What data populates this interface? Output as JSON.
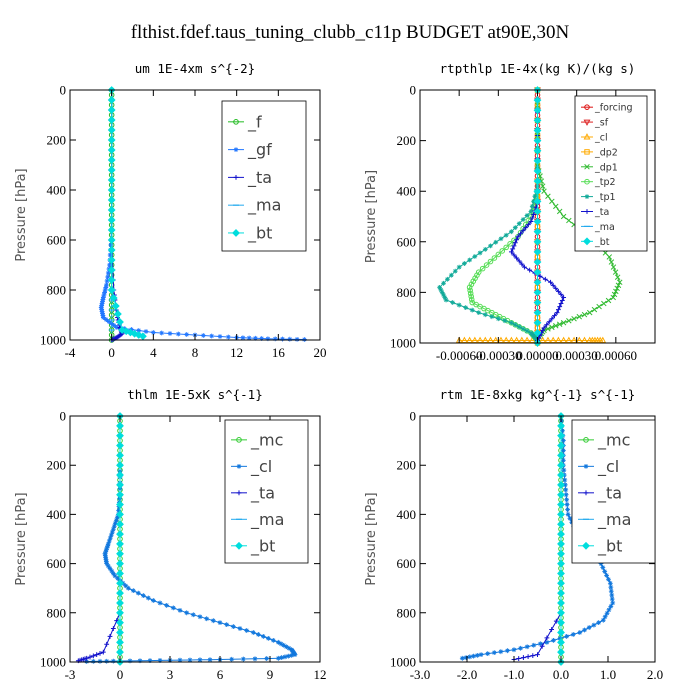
{
  "title": "flthist.fdef.taus_tuning_clubb_c11p  BUDGET at90E,30N",
  "colors": {
    "f": "#22bb22",
    "gf": "#2277ff",
    "ta": "#1111cc",
    "ma": "#22aaee",
    "bt": "#00dddd",
    "mc": "#33cc33",
    "cl": "#1177dd",
    "forcing": "#dd1111",
    "sf": "#dd2222",
    "dp2": "#ffaa00",
    "dp1": "#33bb33",
    "tp2": "#55dd55",
    "tp1": "#11aa99"
  },
  "chart_data": [
    {
      "type": "line",
      "title": "um  1E-4xm s^{-2}",
      "ylabel": "Pressure [hPa]",
      "xlim": [
        -4,
        20
      ],
      "ylim": [
        1000,
        0
      ],
      "xticks": [
        -4,
        0,
        4,
        8,
        12,
        16,
        20
      ],
      "xtick_labels": [
        "-4",
        "0",
        "4",
        "8",
        "12",
        "16",
        "20"
      ],
      "yticks": [
        0,
        200,
        400,
        600,
        800,
        1000
      ],
      "legend_position": "top-right",
      "series": [
        {
          "name": "_f",
          "color_key": "f",
          "marker": "circle",
          "x": [
            0,
            0,
            0,
            0,
            0,
            0,
            0,
            0,
            0,
            0,
            0
          ],
          "y": [
            0,
            100,
            200,
            300,
            400,
            500,
            600,
            700,
            800,
            900,
            1000
          ]
        },
        {
          "name": "_gf",
          "color_key": "gf",
          "marker": "star",
          "x": [
            0,
            0,
            0,
            -0.05,
            -0.2,
            -0.5,
            -0.8,
            -1,
            -0.8,
            0.5,
            4,
            8,
            12,
            15,
            18.5
          ],
          "y": [
            0,
            200,
            400,
            600,
            700,
            780,
            830,
            870,
            910,
            950,
            970,
            980,
            990,
            995,
            998
          ]
        },
        {
          "name": "_ta",
          "color_key": "ta",
          "marker": "plus",
          "x": [
            0,
            0,
            0,
            0,
            0.2,
            0.5,
            0.8,
            1,
            0.5,
            0
          ],
          "y": [
            0,
            200,
            400,
            600,
            800,
            900,
            950,
            975,
            990,
            1000
          ]
        },
        {
          "name": "_ma",
          "color_key": "ma",
          "marker": "dash",
          "x": [
            0,
            0,
            0,
            0,
            0,
            0
          ],
          "y": [
            0,
            200,
            400,
            600,
            800,
            1000
          ]
        },
        {
          "name": "_bt",
          "color_key": "bt",
          "marker": "diamond",
          "x": [
            0,
            0,
            0,
            0,
            0,
            1,
            3
          ],
          "y": [
            0,
            200,
            400,
            600,
            800,
            960,
            985
          ]
        }
      ]
    },
    {
      "type": "line",
      "title": "rtpthlp  1E-4x(kg K)/(kg s)",
      "ylabel": "Pressure [hPa]",
      "xlim": [
        -0.0009,
        0.0009
      ],
      "ylim": [
        1000,
        0
      ],
      "xticks": [
        -0.0006,
        -0.0003,
        0,
        0.0003,
        0.0006
      ],
      "xtick_labels": [
        "-0.00060",
        "-0.00030",
        "0.00000",
        "0.00030",
        "0.00060"
      ],
      "yticks": [
        0,
        200,
        400,
        600,
        800,
        1000
      ],
      "legend_position": "top-right",
      "series": [
        {
          "name": "_forcing",
          "color_key": "forcing",
          "marker": "circle",
          "x": [
            0,
            0,
            0,
            0,
            0,
            0,
            0,
            0,
            0,
            0,
            0
          ],
          "y": [
            0,
            100,
            200,
            300,
            400,
            500,
            600,
            700,
            800,
            900,
            1000
          ]
        },
        {
          "name": "_sf",
          "color_key": "sf",
          "marker": "triangle-down",
          "x": [
            0,
            0,
            0,
            0,
            0,
            0
          ],
          "y": [
            0,
            200,
            400,
            600,
            800,
            1000
          ]
        },
        {
          "name": "_cl",
          "color_key": "dp2",
          "marker": "triangle-up",
          "x": [
            -0.0006,
            -0.0004,
            -0.0002,
            0,
            0.0002,
            0.0004,
            0.0005
          ],
          "y": [
            990,
            990,
            990,
            990,
            990,
            990,
            990
          ]
        },
        {
          "name": "_dp2",
          "color_key": "dp2",
          "marker": "square",
          "x": [
            0,
            0,
            0,
            0,
            0
          ],
          "y": [
            0,
            300,
            600,
            900,
            1000
          ]
        },
        {
          "name": "_dp1",
          "color_key": "dp1",
          "marker": "cross",
          "x": [
            0,
            0,
            5e-05,
            0.0002,
            0.0004,
            0.00055,
            0.00063,
            0.00058,
            0.0004,
            0.0002,
            5e-05,
            0
          ],
          "y": [
            0,
            300,
            400,
            500,
            580,
            660,
            760,
            820,
            880,
            920,
            950,
            980
          ]
        },
        {
          "name": "_tp2",
          "color_key": "tp2",
          "marker": "circle",
          "x": [
            0,
            0,
            -5e-05,
            -0.00015,
            -0.0003,
            -0.00045,
            -0.00052,
            -0.0005,
            -0.00035,
            -0.0002,
            -5e-05,
            0
          ],
          "y": [
            0,
            400,
            500,
            580,
            650,
            720,
            780,
            840,
            880,
            920,
            960,
            990
          ]
        },
        {
          "name": "_tp1",
          "color_key": "tp1",
          "marker": "star",
          "x": [
            0,
            0,
            -5e-05,
            -0.0002,
            -0.0004,
            -0.0006,
            -0.00075,
            -0.0007,
            -0.00045,
            -0.0002,
            -5e-05,
            0
          ],
          "y": [
            0,
            380,
            480,
            560,
            630,
            700,
            780,
            830,
            880,
            920,
            960,
            990
          ]
        },
        {
          "name": "_ta",
          "color_key": "ta",
          "marker": "plus",
          "x": [
            0,
            0,
            -5e-05,
            -0.00015,
            -0.0002,
            -0.0001,
            0.0001,
            0.0002,
            0.00015,
            5e-05,
            0
          ],
          "y": [
            0,
            450,
            520,
            580,
            640,
            700,
            760,
            820,
            880,
            940,
            990
          ]
        },
        {
          "name": "_ma",
          "color_key": "ma",
          "marker": "dash",
          "x": [
            0,
            0,
            0,
            0,
            0,
            0
          ],
          "y": [
            0,
            200,
            400,
            600,
            800,
            1000
          ]
        },
        {
          "name": "_bt",
          "color_key": "bt",
          "marker": "diamond",
          "x": [
            0,
            0,
            0,
            0,
            0,
            0
          ],
          "y": [
            0,
            200,
            400,
            600,
            800,
            1000
          ]
        }
      ]
    },
    {
      "type": "line",
      "title": "thlm  1E-5xK s^{-1}",
      "ylabel": "Pressure [hPa]",
      "xlim": [
        -3,
        12
      ],
      "ylim": [
        1000,
        0
      ],
      "xticks": [
        -3,
        0,
        3,
        6,
        9,
        12
      ],
      "xtick_labels": [
        "-3",
        "0",
        "3",
        "6",
        "9",
        "12"
      ],
      "yticks": [
        0,
        200,
        400,
        600,
        800,
        1000
      ],
      "legend_position": "top-right",
      "series": [
        {
          "name": "_mc",
          "color_key": "mc",
          "marker": "circle",
          "x": [
            0,
            0,
            0,
            0,
            0,
            0,
            0,
            0,
            0,
            0,
            0
          ],
          "y": [
            0,
            100,
            200,
            300,
            400,
            500,
            600,
            700,
            800,
            900,
            1000
          ]
        },
        {
          "name": "_cl",
          "color_key": "cl",
          "marker": "star",
          "x": [
            0,
            0,
            0,
            -0.1,
            -0.4,
            -0.7,
            -0.9,
            -0.8,
            -0.3,
            0.5,
            2,
            4,
            6,
            8,
            9.5,
            10.3,
            10.5,
            9.5,
            6,
            3,
            0,
            -2
          ],
          "y": [
            0,
            200,
            320,
            400,
            460,
            520,
            560,
            600,
            650,
            700,
            750,
            800,
            840,
            880,
            920,
            950,
            970,
            985,
            990,
            993,
            996,
            998
          ]
        },
        {
          "name": "_ta",
          "color_key": "ta",
          "marker": "plus",
          "x": [
            0,
            0,
            0,
            0,
            0,
            -1,
            -2,
            -2.5
          ],
          "y": [
            0,
            200,
            400,
            600,
            800,
            960,
            985,
            995
          ]
        },
        {
          "name": "_ma",
          "color_key": "ma",
          "marker": "dash",
          "x": [
            0,
            0,
            0,
            0,
            0,
            0
          ],
          "y": [
            0,
            200,
            400,
            600,
            800,
            1000
          ]
        },
        {
          "name": "_bt",
          "color_key": "bt",
          "marker": "diamond",
          "x": [
            0,
            0,
            0,
            0,
            0,
            0
          ],
          "y": [
            0,
            200,
            400,
            600,
            800,
            1000
          ]
        }
      ]
    },
    {
      "type": "line",
      "title": "rtm  1E-8xkg kg^{-1} s^{-1}",
      "ylabel": "Pressure [hPa]",
      "xlim": [
        -3.0,
        2.0
      ],
      "ylim": [
        1000,
        0
      ],
      "xticks": [
        -3.0,
        -2.0,
        -1.0,
        0.0,
        1.0,
        2.0
      ],
      "xtick_labels": [
        "-3.0",
        "-2.0",
        "-1.0",
        "0.0",
        "1.0",
        "2.0"
      ],
      "yticks": [
        0,
        200,
        400,
        600,
        800,
        1000
      ],
      "legend_position": "top-right",
      "series": [
        {
          "name": "_mc",
          "color_key": "mc",
          "marker": "circle",
          "x": [
            0,
            0,
            0,
            0,
            0,
            0,
            0,
            0,
            0,
            0,
            0
          ],
          "y": [
            0,
            100,
            200,
            300,
            400,
            500,
            600,
            700,
            800,
            900,
            1000
          ]
        },
        {
          "name": "_cl",
          "color_key": "cl",
          "marker": "star",
          "x": [
            0,
            0.05,
            0.05,
            0.1,
            0.15,
            0.35,
            0.6,
            0.85,
            1.05,
            1.1,
            0.9,
            0.4,
            -0.3,
            -1.0,
            -1.7,
            -2.1
          ],
          "y": [
            0,
            100,
            200,
            300,
            400,
            480,
            540,
            600,
            680,
            760,
            830,
            880,
            920,
            950,
            970,
            985
          ]
        },
        {
          "name": "_ta",
          "color_key": "ta",
          "marker": "plus",
          "x": [
            0,
            0,
            0,
            0,
            0,
            -0.5,
            -1.0
          ],
          "y": [
            0,
            200,
            400,
            600,
            800,
            970,
            990
          ]
        },
        {
          "name": "_ma",
          "color_key": "ma",
          "marker": "dash",
          "x": [
            0,
            0,
            0,
            0,
            0,
            0
          ],
          "y": [
            0,
            200,
            400,
            600,
            800,
            1000
          ]
        },
        {
          "name": "_bt",
          "color_key": "bt",
          "marker": "diamond",
          "x": [
            0,
            0,
            0,
            0,
            0,
            0
          ],
          "y": [
            0,
            200,
            400,
            600,
            800,
            1000
          ]
        }
      ]
    }
  ]
}
